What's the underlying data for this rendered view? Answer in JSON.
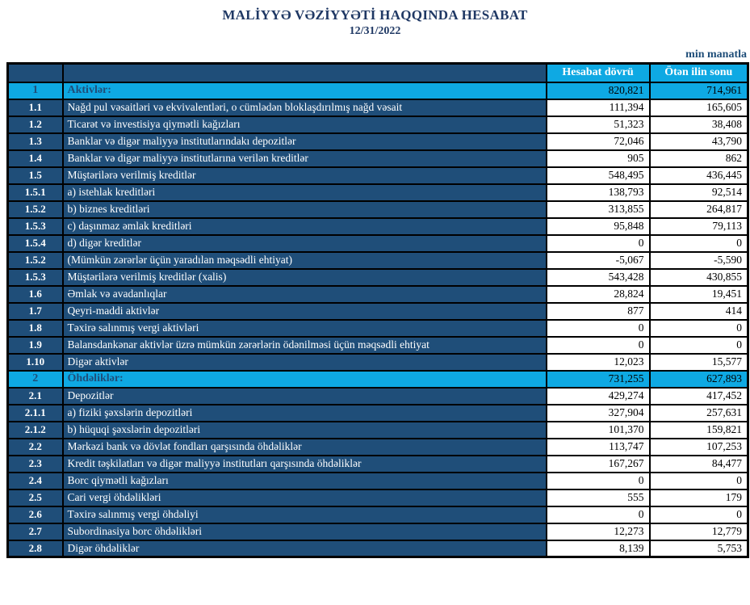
{
  "header": {
    "title": "MALİYYƏ VƏZİYYƏTİ HAQQINDA HESABAT",
    "date": "12/31/2022",
    "unit_note": "min manatla"
  },
  "colors": {
    "navy_cell": "#1F4E79",
    "cyan_highlight": "#0EA9E3",
    "title_text": "#1F3864",
    "border": "#000000"
  },
  "table": {
    "columns": [
      "Hesabat dövrü",
      "Ötən ilin sonu"
    ],
    "rows": [
      {
        "code": "1",
        "label": "Aktivlər:",
        "current": "820,821",
        "previous": "714,961",
        "type": "section"
      },
      {
        "code": "1.1",
        "label": "Nağd pul vəsaitləri və  ekvivalentləri, o cümlədən bloklaşdırılmış nağd vəsait",
        "current": "111,394",
        "previous": "165,605",
        "type": "normal"
      },
      {
        "code": "1.2",
        "label": "Ticarət və investisiya qiymətli kağızları",
        "current": "51,323",
        "previous": "38,408",
        "type": "normal"
      },
      {
        "code": "1.3",
        "label": "Banklar və digər maliyyə institutlarındakı depozitlər",
        "current": "72,046",
        "previous": "43,790",
        "type": "normal"
      },
      {
        "code": "1.4",
        "label": "Banklar və digər maliyyə institutlarına verilən kreditlər",
        "current": "905",
        "previous": "862",
        "type": "normal"
      },
      {
        "code": "1.5",
        "label": "Müştərilərə verilmiş kreditlər",
        "current": "548,495",
        "previous": "436,445",
        "type": "normal"
      },
      {
        "code": "1.5.1",
        "label": "a) istehlak kreditləri",
        "current": "138,793",
        "previous": "92,514",
        "type": "normal"
      },
      {
        "code": "1.5.2",
        "label": "b) biznes kreditləri",
        "current": "313,855",
        "previous": "264,817",
        "type": "normal"
      },
      {
        "code": "1.5.3",
        "label": "c) daşınmaz əmlak kreditləri",
        "current": "95,848",
        "previous": "79,113",
        "type": "normal"
      },
      {
        "code": "1.5.4",
        "label": "d) digər kreditlər",
        "current": "0",
        "previous": "0",
        "type": "normal"
      },
      {
        "code": "1.5.2",
        "label": "(Mümkün zərərlər üçün yaradılan məqsədli ehtiyat)",
        "current": "-5,067",
        "previous": "-5,590",
        "type": "normal"
      },
      {
        "code": "1.5.3",
        "label": "Müştərilərə verilmiş kreditlər (xalis)",
        "current": "543,428",
        "previous": "430,855",
        "type": "normal"
      },
      {
        "code": "1.6",
        "label": "Əmlak və avadanlıqlar",
        "current": "28,824",
        "previous": "19,451",
        "type": "normal"
      },
      {
        "code": "1.7",
        "label": "Qeyri-maddi aktivlər",
        "current": "877",
        "previous": "414",
        "type": "normal"
      },
      {
        "code": "1.8",
        "label": "Təxirə salınmış vergi aktivləri",
        "current": "0",
        "previous": "0",
        "type": "normal"
      },
      {
        "code": "1.9",
        "label": "Balansdankənar aktivlər üzrə mümkün zərərlərin ödənilməsi üçün məqsədli ehtiyat",
        "current": "0",
        "previous": "0",
        "type": "normal"
      },
      {
        "code": "1.10",
        "label": "Digər aktivlər",
        "current": "12,023",
        "previous": "15,577",
        "type": "normal"
      },
      {
        "code": "2",
        "label": "Öhdəliklər:",
        "current": "731,255",
        "previous": "627,893",
        "type": "section"
      },
      {
        "code": "2.1",
        "label": "Depozitlər",
        "current": "429,274",
        "previous": "417,452",
        "type": "normal"
      },
      {
        "code": "2.1.1",
        "label": "a) fiziki şəxslərin depozitləri",
        "current": "327,904",
        "previous": "257,631",
        "type": "normal"
      },
      {
        "code": "2.1.2",
        "label": "b) hüquqi şəxslərin depozitləri",
        "current": "101,370",
        "previous": "159,821",
        "type": "normal"
      },
      {
        "code": "2.2",
        "label": "Mərkəzi bank və dövlət fondları qarşısında öhdəliklər",
        "current": "113,747",
        "previous": "107,253",
        "type": "normal"
      },
      {
        "code": "2.3",
        "label": "Kredit təşkilatları və digər maliyyə institutları qarşısında öhdəliklər",
        "current": "167,267",
        "previous": "84,477",
        "type": "normal"
      },
      {
        "code": "2.4",
        "label": "Borc qiymətli kağızları",
        "current": "0",
        "previous": "0",
        "type": "normal"
      },
      {
        "code": "2.5",
        "label": "Cari vergi öhdəlikləri",
        "current": "555",
        "previous": "179",
        "type": "normal"
      },
      {
        "code": "2.6",
        "label": "Təxirə salınmış vergi öhdəliyi",
        "current": "0",
        "previous": "0",
        "type": "normal"
      },
      {
        "code": "2.7",
        "label": "Subordinasiya borc öhdəlikləri",
        "current": "12,273",
        "previous": "12,779",
        "type": "normal"
      },
      {
        "code": "2.8",
        "label": "Digər öhdəliklər",
        "current": "8,139",
        "previous": "5,753",
        "type": "normal"
      }
    ]
  }
}
